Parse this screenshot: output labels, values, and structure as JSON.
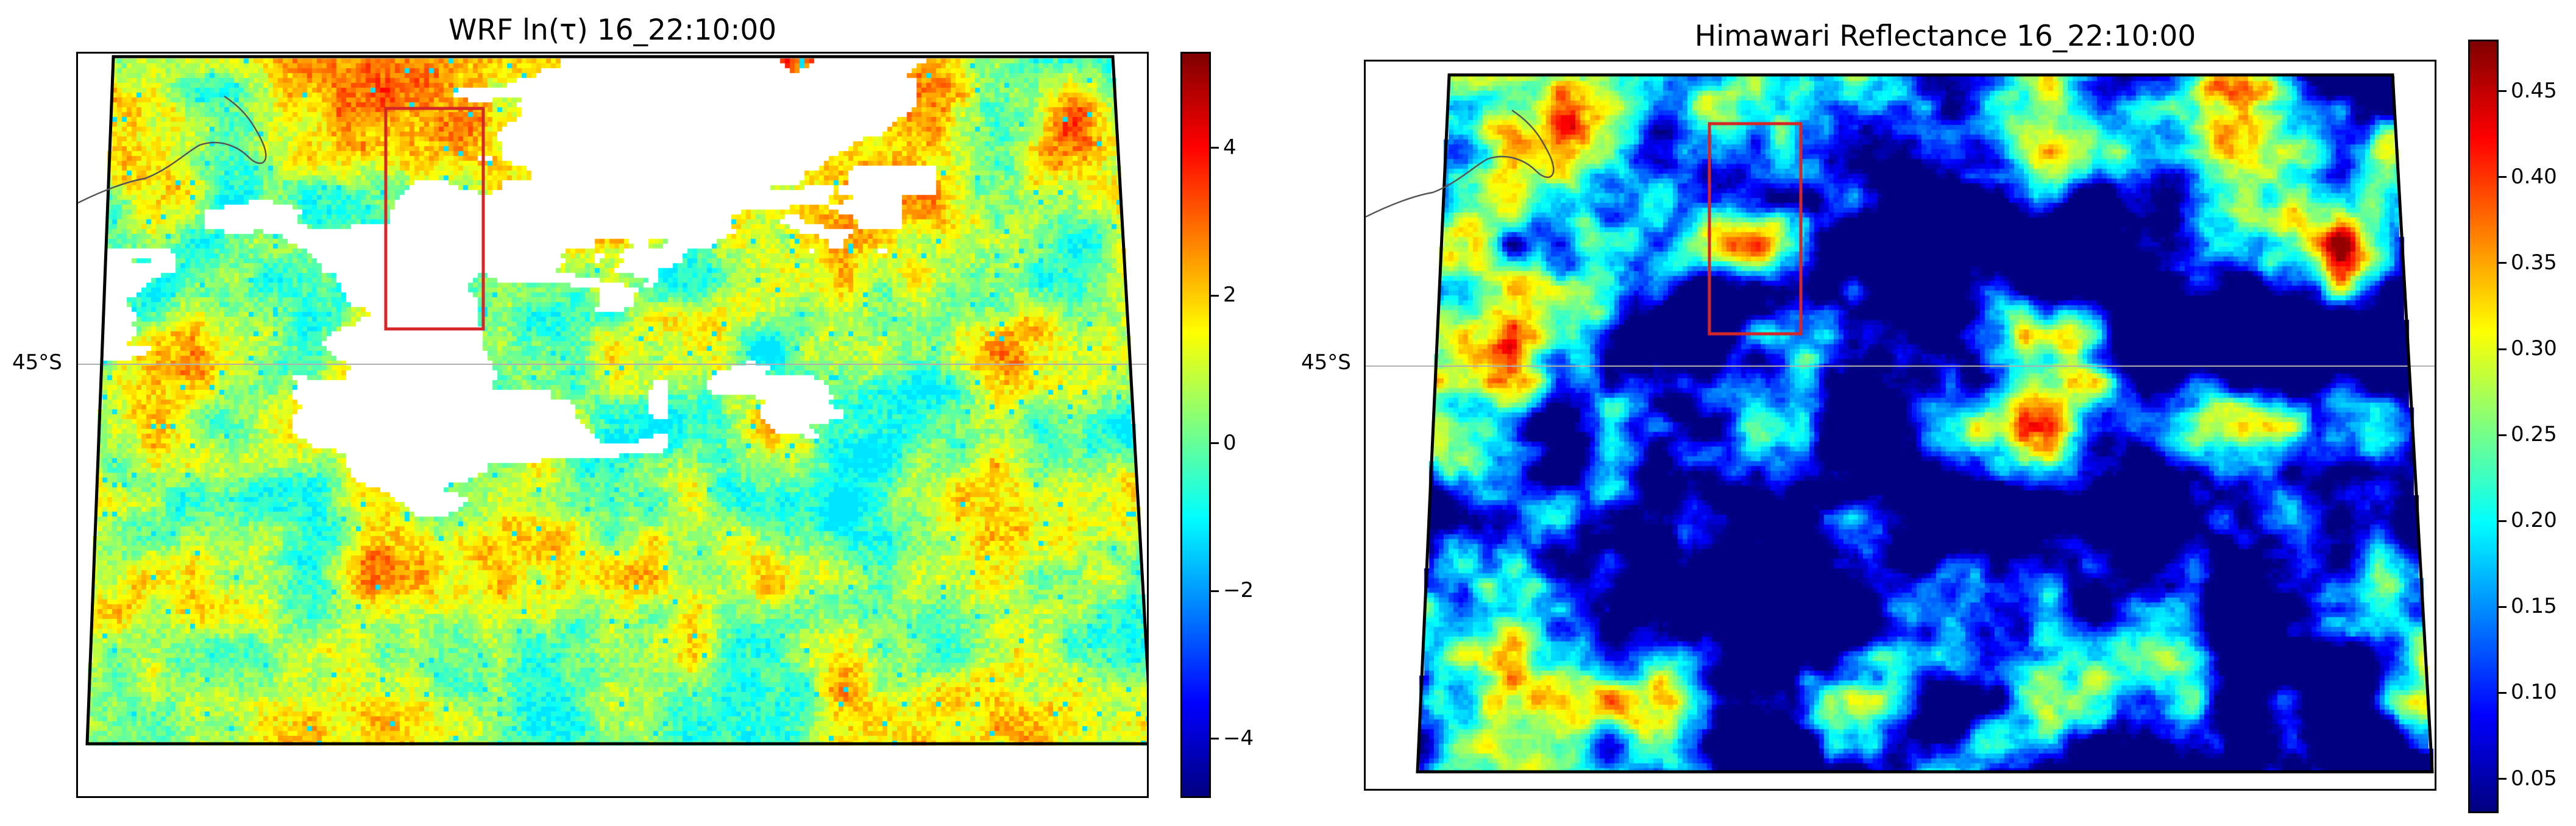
{
  "chart_data": [
    {
      "type": "heatmap",
      "title": "WRF ln(τ) 16_22:10:00",
      "xlabel": "",
      "ylabel": "",
      "lat_labels": [
        "45°S"
      ],
      "colormap": "jet",
      "colorbar": {
        "vmin": -4.8,
        "vmax": 5.3,
        "ticks": [
          -4,
          -2,
          0,
          2,
          4
        ],
        "tick_labels": [
          "−4",
          "−2",
          "0",
          "2",
          "4"
        ]
      },
      "missing_color": "#ffffff",
      "grid": true,
      "box_color": "#d62728"
    },
    {
      "type": "heatmap",
      "title": "Himawari Reflectance 16_22:10:00",
      "xlabel": "",
      "ylabel": "",
      "lat_labels": [
        "45°S"
      ],
      "colormap": "jet",
      "colorbar": {
        "vmin": 0.03,
        "vmax": 0.48,
        "ticks": [
          0.05,
          0.1,
          0.15,
          0.2,
          0.25,
          0.3,
          0.35,
          0.4,
          0.45
        ],
        "tick_labels": [
          "0.05",
          "0.10",
          "0.15",
          "0.20",
          "0.25",
          "0.30",
          "0.35",
          "0.40",
          "0.45"
        ]
      },
      "missing_color": "#ffffff",
      "grid": true,
      "box_color": "#d62728"
    }
  ]
}
